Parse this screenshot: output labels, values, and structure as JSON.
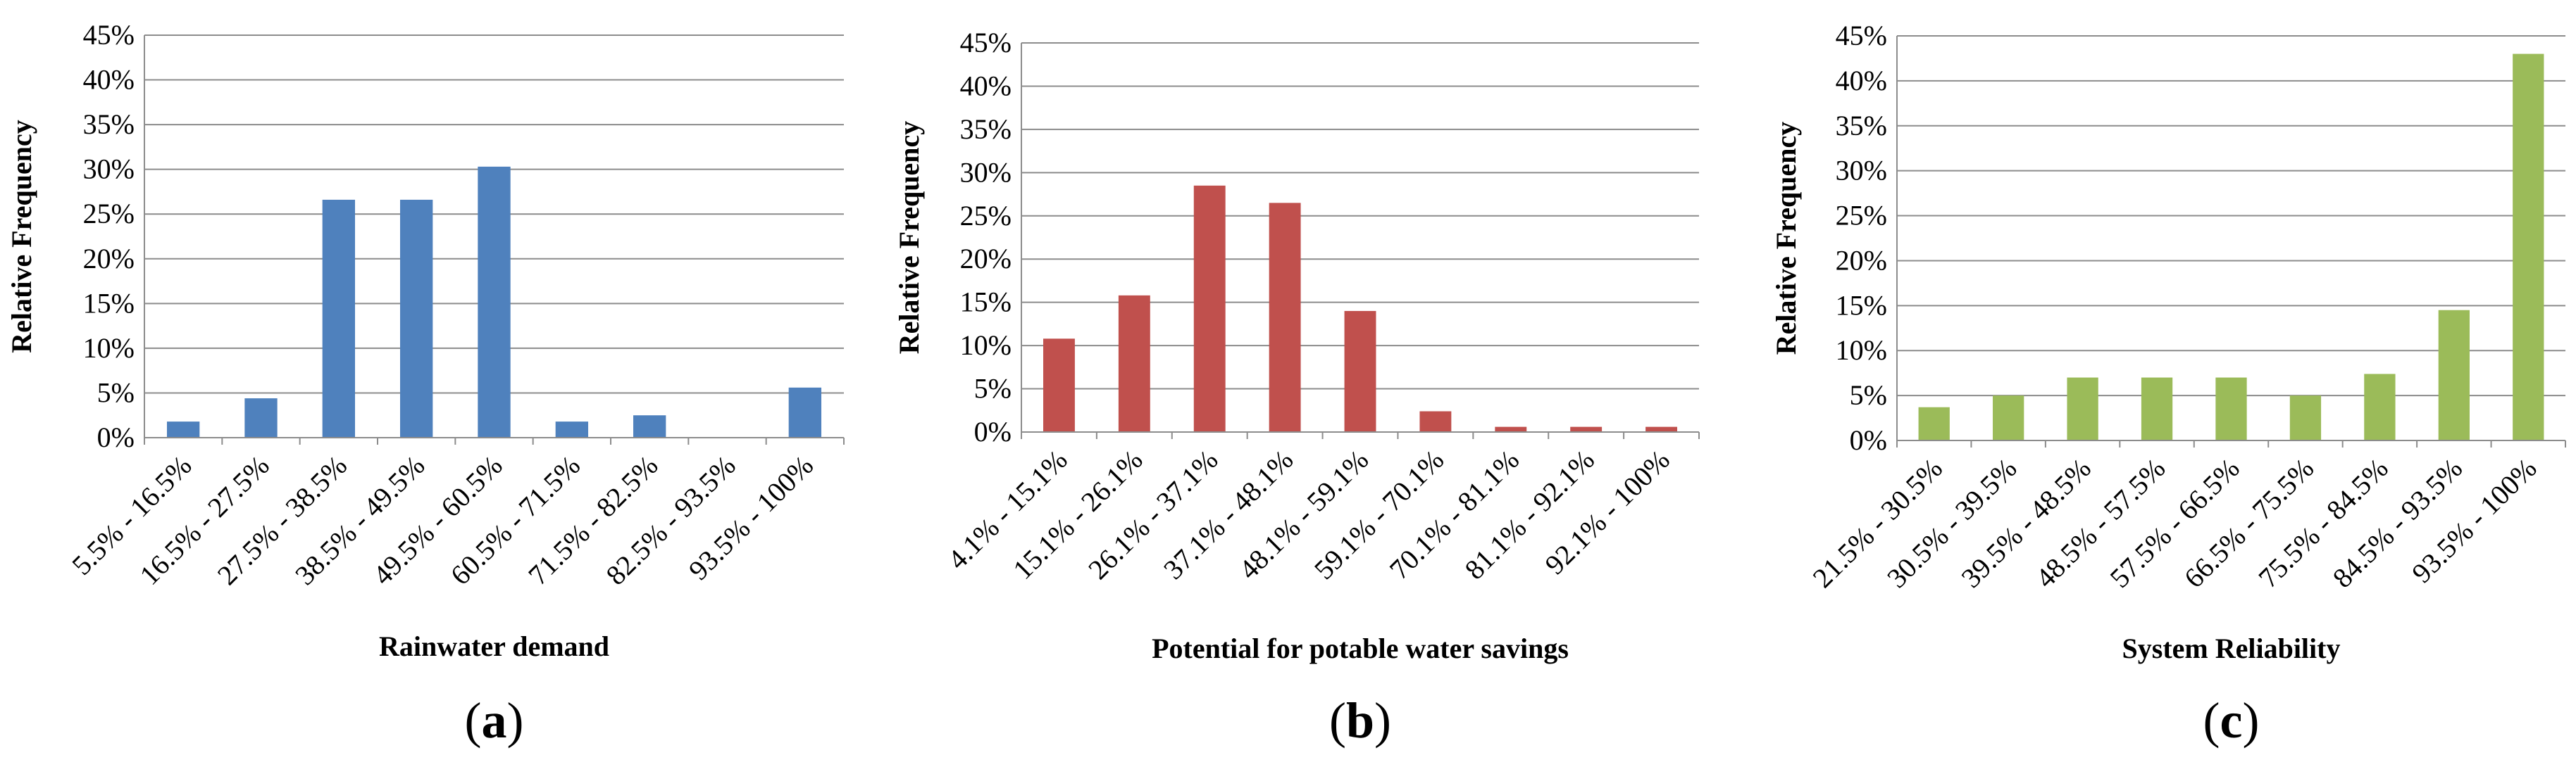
{
  "chart_data": [
    {
      "type": "bar",
      "panel_label": "a",
      "xlabel": "Rainwater demand",
      "ylabel": "Relative Frequency",
      "ylim": [
        0,
        45
      ],
      "yticks": [
        "0%",
        "5%",
        "10%",
        "15%",
        "20%",
        "25%",
        "30%",
        "35%",
        "40%",
        "45%"
      ],
      "categories": [
        "5.5% - 16.5%",
        "16.5% - 27.5%",
        "27.5% - 38.5%",
        "38.5% - 49.5%",
        "49.5% - 60.5%",
        "60.5% - 71.5%",
        "71.5% - 82.5%",
        "82.5% - 93.5%",
        "93.5% - 100%"
      ],
      "values": [
        1.8,
        4.4,
        26.6,
        26.6,
        30.3,
        1.8,
        2.5,
        0,
        5.6
      ],
      "color": "#4f81bd"
    },
    {
      "type": "bar",
      "panel_label": "b",
      "xlabel": "Potential for potable water savings",
      "ylabel": "Relative Frequency",
      "ylim": [
        0,
        45
      ],
      "yticks": [
        "0%",
        "5%",
        "10%",
        "15%",
        "20%",
        "25%",
        "30%",
        "35%",
        "40%",
        "45%"
      ],
      "categories": [
        "4.1% - 15.1%",
        "15.1% - 26.1%",
        "26.1% - 37.1%",
        "37.1% - 48.1%",
        "48.1% - 59.1%",
        "59.1% - 70.1%",
        "70.1% - 81.1%",
        "81.1% - 92.1%",
        "92.1% - 100%"
      ],
      "values": [
        10.8,
        15.8,
        28.5,
        26.5,
        14.0,
        2.4,
        0.6,
        0.6,
        0.6
      ],
      "color": "#c0504d"
    },
    {
      "type": "bar",
      "panel_label": "c",
      "xlabel": "System Reliability",
      "ylabel": "Relative Frequency",
      "ylim": [
        0,
        45
      ],
      "yticks": [
        "0%",
        "5%",
        "10%",
        "15%",
        "20%",
        "25%",
        "30%",
        "35%",
        "40%",
        "45%"
      ],
      "categories": [
        "21.5% - 30.5%",
        "30.5% - 39.5%",
        "39.5% - 48.5%",
        "48.5% - 57.5%",
        "57.5% - 66.5%",
        "66.5% - 75.5%",
        "75.5% - 84.5%",
        "84.5% - 93.5%",
        "93.5% - 100%"
      ],
      "values": [
        3.7,
        5.0,
        7.0,
        7.0,
        7.0,
        5.0,
        7.4,
        14.5,
        43.0
      ],
      "color": "#9bbb59"
    }
  ]
}
